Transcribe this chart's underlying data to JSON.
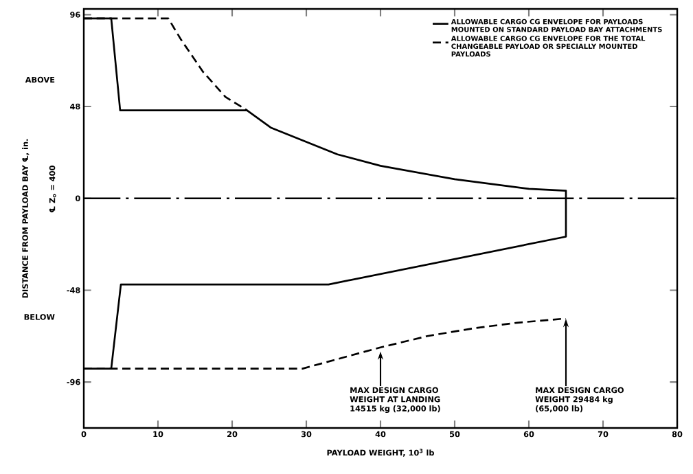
{
  "chart_data": {
    "type": "line",
    "xlabel": "PAYLOAD WEIGHT, 10$^{3}$ lb",
    "ylabel": "DISTANCE FROM PAYLOAD BAY ℄, in.",
    "xlim": [
      0,
      80
    ],
    "ylim": [
      -120,
      99
    ],
    "xticks": [
      0,
      10,
      20,
      30,
      40,
      50,
      60,
      70,
      80
    ],
    "yticks": [
      -96,
      -48,
      0,
      48,
      96
    ],
    "legend": "top right",
    "marker": "none",
    "series": [
      {
        "name": "ALLOWABLE CARGO CG ENVELOPE FOR PAYLOADS MOUNTED ON STANDARD PAYLOAD BAY ATTACHMENTS",
        "color": "#000000",
        "line_style": "solid",
        "x": [
          0,
          3.7,
          4.9,
          22,
          25.2,
          29.7,
          34.2,
          40,
          50,
          60,
          65,
          65,
          33,
          5,
          3.7,
          0
        ],
        "values": [
          94,
          94,
          46,
          46,
          37,
          30,
          23,
          17,
          10,
          5,
          4,
          -20,
          -45,
          -45,
          -89,
          -89
        ]
      },
      {
        "name": "ALLOWABLE CARGO CG ENVELOPE FOR THE TOTAL CHANGEABLE PAYLOAD OR SPECIALLY MOUNTED PAYLOADS",
        "color": "#000000",
        "line_style": "dashed",
        "x": [
          0,
          11.4,
          13.1,
          16.1,
          19.1,
          21.6,
          22
        ],
        "values": [
          94,
          94,
          83,
          66,
          53,
          47,
          46
        ]
      },
      {
        "color": "#000000",
        "line_style": "dashed",
        "x": [
          0,
          29.5,
          34.2,
          39.9,
          46.3,
          52.4,
          58.4,
          64.4,
          65
        ],
        "values": [
          -89,
          -89,
          -84,
          -78,
          -72,
          -68,
          -65,
          -63,
          -63
        ]
      }
    ],
    "ref_lines": [
      {
        "axis": "y",
        "value": 0,
        "line_style": "dashdot",
        "color": "#000000"
      }
    ],
    "annotations": [
      "ABOVE",
      "BELOW",
      "℄ Z$_{o}$ = 400",
      {
        "text": "MAX DESIGN CARGO WEIGHT AT LANDING 14515 kg (32,000 lb)",
        "x": 40,
        "y": -80
      },
      {
        "text": "MAX DESIGN CARGO WEIGHT 29484 kg (65,000 lb)",
        "x": 65,
        "y": -63
      }
    ]
  }
}
